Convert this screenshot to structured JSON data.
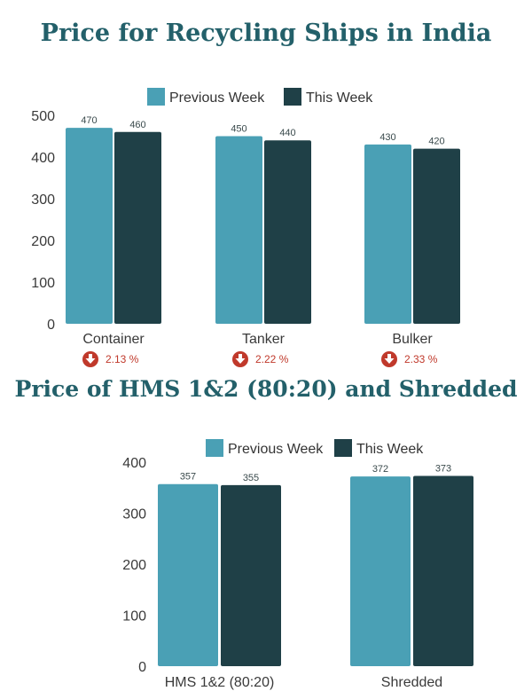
{
  "chart_data": [
    {
      "type": "bar",
      "title": "Price for Recycling Ships in India",
      "categories": [
        "Container",
        "Tanker",
        "Bulker"
      ],
      "series": [
        {
          "name": "Previous Week",
          "values": [
            470,
            450,
            430
          ]
        },
        {
          "name": "This Week",
          "values": [
            460,
            440,
            420
          ]
        }
      ],
      "ylim": [
        0,
        500
      ],
      "yticks": [
        0,
        100,
        200,
        300,
        400,
        500
      ],
      "grid": false,
      "legend": "top-center",
      "changes": [
        {
          "direction": "down",
          "label": "2.13 %"
        },
        {
          "direction": "down",
          "label": "2.22 %"
        },
        {
          "direction": "down",
          "label": "2.33 %"
        }
      ]
    },
    {
      "type": "bar",
      "title": "Price of HMS 1&2 (80:20) and Shredded",
      "categories": [
        "HMS 1&2 (80:20)",
        "Shredded"
      ],
      "series": [
        {
          "name": "Previous Week",
          "values": [
            357,
            372
          ]
        },
        {
          "name": "This Week",
          "values": [
            355,
            373
          ]
        }
      ],
      "ylim": [
        0,
        400
      ],
      "yticks": [
        0,
        100,
        200,
        300,
        400
      ],
      "grid": false,
      "legend": "top-center"
    }
  ],
  "colors": {
    "previous_week": "#4aa0b5",
    "this_week": "#1f4047",
    "title": "#23606a",
    "down_indicator": "#c0392b"
  }
}
